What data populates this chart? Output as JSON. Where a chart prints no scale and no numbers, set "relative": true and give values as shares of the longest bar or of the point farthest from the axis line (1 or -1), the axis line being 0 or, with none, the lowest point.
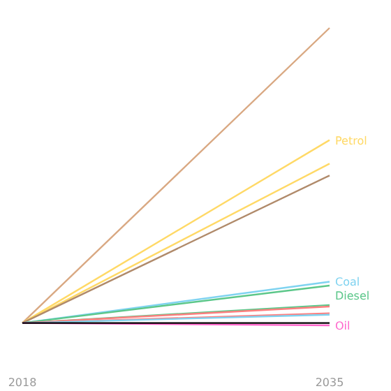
{
  "chart_data": {
    "type": "line",
    "relative": true,
    "x": [
      2018,
      2035
    ],
    "xlim": [
      2018,
      2035
    ],
    "xticks": [
      2018,
      2035
    ],
    "series": [
      {
        "color": "#d9a882",
        "values": [
          0,
          1
        ]
      },
      {
        "name": "Petrol",
        "color": "#ffd966",
        "values": [
          0,
          0.62
        ]
      },
      {
        "color": "#ffd966",
        "values": [
          0,
          0.54
        ]
      },
      {
        "color": "#b08a6a",
        "values": [
          0,
          0.5
        ]
      },
      {
        "name": "Coal",
        "color": "#7fd3f0",
        "values": [
          0,
          0.14
        ]
      },
      {
        "name": "Diesel",
        "color": "#5cc78a",
        "values": [
          0,
          0.127
        ]
      },
      {
        "color": "#5cc78a",
        "values": [
          0,
          0.061
        ]
      },
      {
        "color": "#ff7f7f",
        "values": [
          0,
          0.056
        ]
      },
      {
        "color": "#ff7f7f",
        "values": [
          0,
          0.033
        ]
      },
      {
        "color": "#7fd3f0",
        "values": [
          0,
          0.028
        ]
      },
      {
        "name": "Oil",
        "color": "#ff66cc",
        "values": [
          0,
          -0.008
        ]
      },
      {
        "color": "#000000",
        "values": [
          0,
          0
        ]
      }
    ]
  }
}
